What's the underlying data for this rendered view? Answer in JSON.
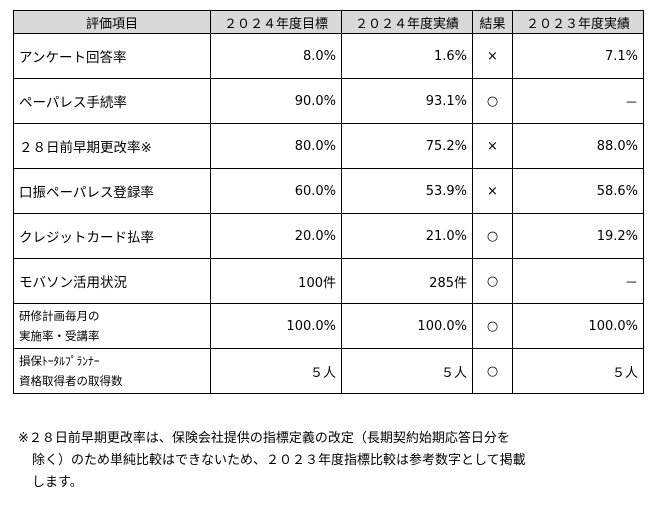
{
  "table": {
    "headers": [
      "評価項目",
      "２０２４年度目標",
      "２０２４年度実績",
      "結果",
      "２０２３年度実績"
    ],
    "rows": [
      {
        "item": "アンケート回答率",
        "target": "8.0%",
        "actual": "1.6%",
        "result": "×",
        "prev": "7.1%"
      },
      {
        "item": "ペーパレス手続率",
        "target": "90.0%",
        "actual": "93.1%",
        "result": "○",
        "prev": "－"
      },
      {
        "item": "２８日前早期更改率※",
        "target": "80.0%",
        "actual": "75.2%",
        "result": "×",
        "prev": "88.0%"
      },
      {
        "item": "口振ペーパレス登録率",
        "target": "60.0%",
        "actual": "53.9%",
        "result": "×",
        "prev": "58.6%"
      },
      {
        "item": "クレジットカード払率",
        "target": "20.0%",
        "actual": "21.0%",
        "result": "○",
        "prev": "19.2%"
      },
      {
        "item": "モバソン活用状況",
        "target": "100件",
        "actual": "285件",
        "result": "○",
        "prev": "－"
      },
      {
        "item_line1": "研修計画毎月の",
        "item_line2": "実施率・受講率",
        "target": "100.0%",
        "actual": "100.0%",
        "result": "○",
        "prev": "100.0%"
      },
      {
        "item_line1": "損保ﾄｰﾀﾙﾌﾟﾗﾝﾅｰ",
        "item_line2": "資格取得者の取得数",
        "target": "５人",
        "actual": "５人",
        "result": "○",
        "prev": "５人"
      }
    ]
  },
  "note": {
    "line1": "※２８日前早期更改率は、保険会社提供の指標定義の改定（長期契約始期応答日分を",
    "line2": "除く）のため単純比較はできないため、２０２３年度指標比較は参考数字として掲載",
    "line3": "します。"
  }
}
